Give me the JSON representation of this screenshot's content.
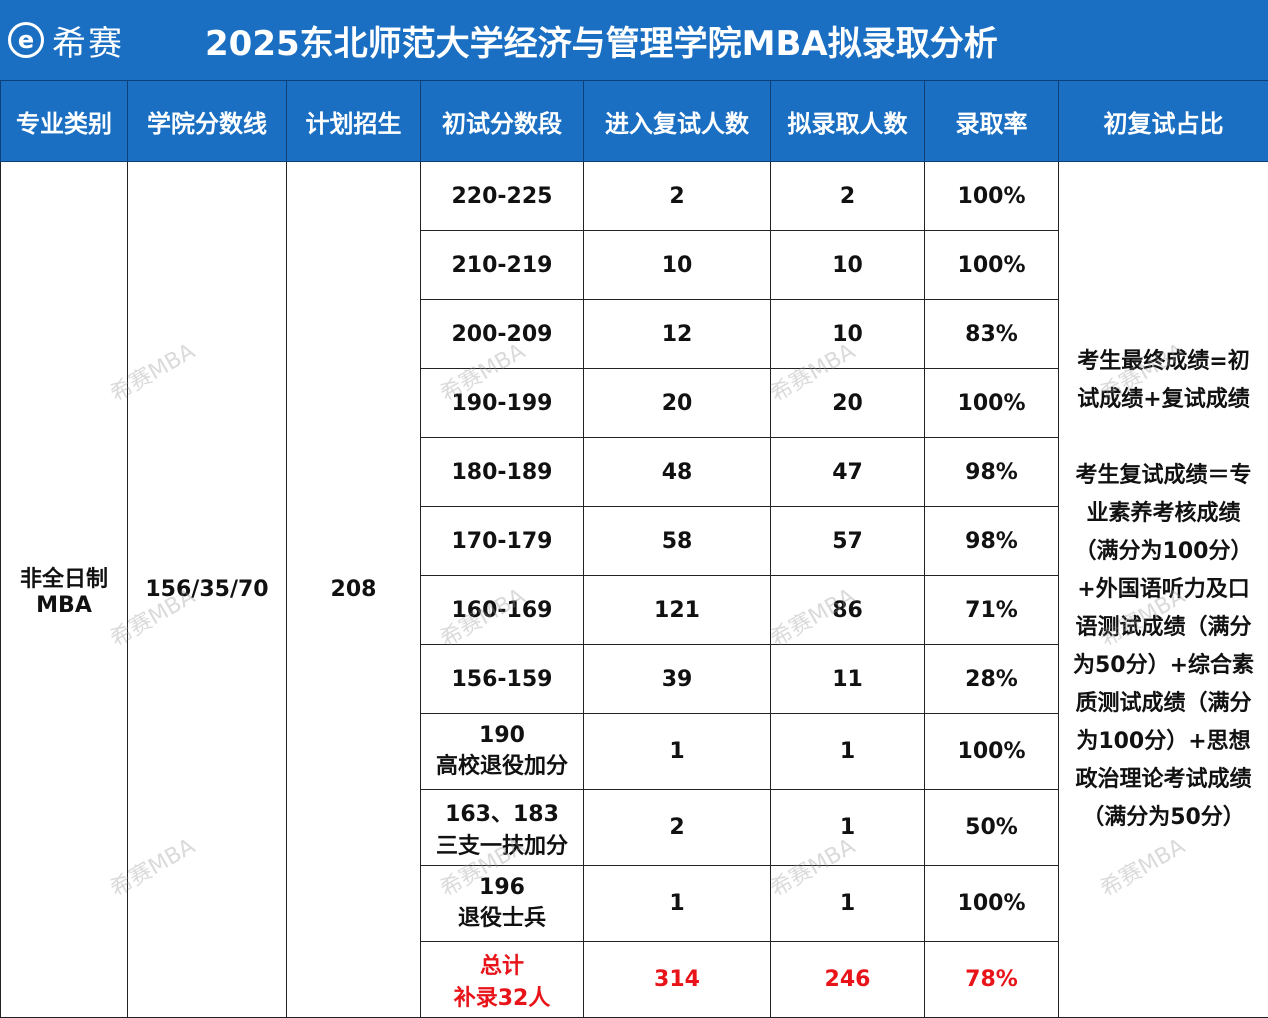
{
  "header": {
    "logo_text": "希赛",
    "title": "2025东北师范大学经济与管理学院MBA拟录取分析"
  },
  "table": {
    "columns": [
      "专业类别",
      "学院分数线",
      "计划招生",
      "初试分数段",
      "进入复试人数",
      "拟录取人数",
      "录取率",
      "初复试占比"
    ],
    "major": [
      "非全日制",
      "MBA"
    ],
    "cutoff": "156/35/70",
    "plan": "208",
    "rows": [
      {
        "range": [
          "220-225"
        ],
        "interview": "2",
        "admitted": "2",
        "rate": "100%"
      },
      {
        "range": [
          "210-219"
        ],
        "interview": "10",
        "admitted": "10",
        "rate": "100%"
      },
      {
        "range": [
          "200-209"
        ],
        "interview": "12",
        "admitted": "10",
        "rate": "83%"
      },
      {
        "range": [
          "190-199"
        ],
        "interview": "20",
        "admitted": "20",
        "rate": "100%"
      },
      {
        "range": [
          "180-189"
        ],
        "interview": "48",
        "admitted": "47",
        "rate": "98%"
      },
      {
        "range": [
          "170-179"
        ],
        "interview": "58",
        "admitted": "57",
        "rate": "98%"
      },
      {
        "range": [
          "160-169"
        ],
        "interview": "121",
        "admitted": "86",
        "rate": "71%"
      },
      {
        "range": [
          "156-159"
        ],
        "interview": "39",
        "admitted": "11",
        "rate": "28%"
      },
      {
        "range": [
          "190",
          "高校退役加分"
        ],
        "interview": "1",
        "admitted": "1",
        "rate": "100%"
      },
      {
        "range": [
          "163、183",
          "三支一扶加分"
        ],
        "interview": "2",
        "admitted": "1",
        "rate": "50%"
      },
      {
        "range": [
          "196",
          "退役士兵"
        ],
        "interview": "1",
        "admitted": "1",
        "rate": "100%"
      }
    ],
    "total": {
      "range": [
        "总计",
        "补录32人"
      ],
      "interview": "314",
      "admitted": "246",
      "rate": "78%"
    },
    "note": {
      "p1": [
        "考生最终成绩=初",
        "试成绩+复试成绩"
      ],
      "p2": [
        "考生复试成绩＝专",
        "业素养考核成绩",
        "（满分为100分）",
        "+外国语听力及口",
        "语测试成绩（满分",
        "为50分）+综合素",
        "质测试成绩（满分",
        "为100分）+思想",
        "政治理论考试成绩",
        "（满分为50分）"
      ]
    }
  },
  "watermark": "希赛MBA",
  "colors": {
    "header_bg": "#1a6fc3",
    "highlight": "#e8141a"
  }
}
